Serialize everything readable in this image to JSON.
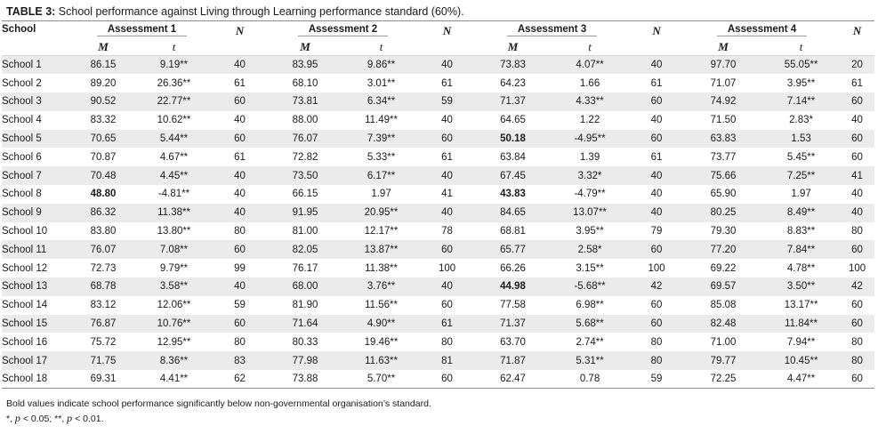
{
  "caption": {
    "label": "TABLE 3:",
    "text": " School performance against Living through Learning performance standard (60%)."
  },
  "header": {
    "school": "School",
    "assessments": [
      "Assessment 1",
      "Assessment 2",
      "Assessment 3",
      "Assessment 4"
    ],
    "m": "M",
    "t": "t",
    "n": "N"
  },
  "rows": [
    {
      "school": "School 1",
      "cells": [
        [
          "86.15",
          "9.19**",
          "40"
        ],
        [
          "83.95",
          "9.86**",
          "40"
        ],
        [
          "73.83",
          "4.07**",
          "40"
        ],
        [
          "97.70",
          "55.05**",
          "20"
        ]
      ],
      "bold": [
        false,
        false,
        false,
        false
      ]
    },
    {
      "school": "School 2",
      "cells": [
        [
          "89.20",
          "26.36**",
          "61"
        ],
        [
          "68.10",
          "3.01**",
          "61"
        ],
        [
          "64.23",
          "1.66",
          "61"
        ],
        [
          "71.07",
          "3.95**",
          "61"
        ]
      ],
      "bold": [
        false,
        false,
        false,
        false
      ]
    },
    {
      "school": "School 3",
      "cells": [
        [
          "90.52",
          "22.77**",
          "60"
        ],
        [
          "73.81",
          "6.34**",
          "59"
        ],
        [
          "71.37",
          "4.33**",
          "60"
        ],
        [
          "74.92",
          "7.14**",
          "60"
        ]
      ],
      "bold": [
        false,
        false,
        false,
        false
      ]
    },
    {
      "school": "School 4",
      "cells": [
        [
          "83.32",
          "10.62**",
          "40"
        ],
        [
          "88.00",
          "11.49**",
          "40"
        ],
        [
          "64.65",
          "1.22",
          "40"
        ],
        [
          "71.50",
          "2.83*",
          "40"
        ]
      ],
      "bold": [
        false,
        false,
        false,
        false
      ]
    },
    {
      "school": "School 5",
      "cells": [
        [
          "70.65",
          "5.44**",
          "60"
        ],
        [
          "76.07",
          "7.39**",
          "60"
        ],
        [
          "50.18",
          "-4.95**",
          "60"
        ],
        [
          "63.83",
          "1.53",
          "60"
        ]
      ],
      "bold": [
        false,
        false,
        true,
        false
      ]
    },
    {
      "school": "School 6",
      "cells": [
        [
          "70.87",
          "4.67**",
          "61"
        ],
        [
          "72.82",
          "5.33**",
          "61"
        ],
        [
          "63.84",
          "1.39",
          "61"
        ],
        [
          "73.77",
          "5.45**",
          "60"
        ]
      ],
      "bold": [
        false,
        false,
        false,
        false
      ]
    },
    {
      "school": "School 7",
      "cells": [
        [
          "70.48",
          "4.45**",
          "40"
        ],
        [
          "73.50",
          "6.17**",
          "40"
        ],
        [
          "67.45",
          "3.32*",
          "40"
        ],
        [
          "75.66",
          "7.25**",
          "41"
        ]
      ],
      "bold": [
        false,
        false,
        false,
        false
      ]
    },
    {
      "school": "School 8",
      "cells": [
        [
          "48.80",
          "-4.81**",
          "40"
        ],
        [
          "66.15",
          "1.97",
          "41"
        ],
        [
          "43.83",
          "-4.79**",
          "40"
        ],
        [
          "65.90",
          "1.97",
          "40"
        ]
      ],
      "bold": [
        true,
        false,
        true,
        false
      ]
    },
    {
      "school": "School 9",
      "cells": [
        [
          "86.32",
          "11.38**",
          "40"
        ],
        [
          "91.95",
          "20.95**",
          "40"
        ],
        [
          "84.65",
          "13.07**",
          "40"
        ],
        [
          "80.25",
          "8.49**",
          "40"
        ]
      ],
      "bold": [
        false,
        false,
        false,
        false
      ]
    },
    {
      "school": "School 10",
      "cells": [
        [
          "83.80",
          "13.80**",
          "80"
        ],
        [
          "81.00",
          "12.17**",
          "78"
        ],
        [
          "68.81",
          "3.95**",
          "79"
        ],
        [
          "79.30",
          "8.83**",
          "80"
        ]
      ],
      "bold": [
        false,
        false,
        false,
        false
      ]
    },
    {
      "school": "School 11",
      "cells": [
        [
          "76.07",
          "7.08**",
          "60"
        ],
        [
          "82.05",
          "13.87**",
          "60"
        ],
        [
          "65.77",
          "2.58*",
          "60"
        ],
        [
          "77.20",
          "7.84**",
          "60"
        ]
      ],
      "bold": [
        false,
        false,
        false,
        false
      ]
    },
    {
      "school": "School 12",
      "cells": [
        [
          "72.73",
          "9.79**",
          "99"
        ],
        [
          "76.17",
          "11.38**",
          "100"
        ],
        [
          "66.26",
          "3.15**",
          "100"
        ],
        [
          "69.22",
          "4.78**",
          "100"
        ]
      ],
      "bold": [
        false,
        false,
        false,
        false
      ]
    },
    {
      "school": "School 13",
      "cells": [
        [
          "68.78",
          "3.58**",
          "40"
        ],
        [
          "68.00",
          "3.76**",
          "40"
        ],
        [
          "44.98",
          "-5.68**",
          "42"
        ],
        [
          "69.57",
          "3.50**",
          "42"
        ]
      ],
      "bold": [
        false,
        false,
        true,
        false
      ]
    },
    {
      "school": "School 14",
      "cells": [
        [
          "83.12",
          "12.06**",
          "59"
        ],
        [
          "81.90",
          "11.56**",
          "60"
        ],
        [
          "77.58",
          "6.98**",
          "60"
        ],
        [
          "85.08",
          "13.17**",
          "60"
        ]
      ],
      "bold": [
        false,
        false,
        false,
        false
      ]
    },
    {
      "school": "School 15",
      "cells": [
        [
          "76.87",
          "10.76**",
          "60"
        ],
        [
          "71.64",
          "4.90**",
          "61"
        ],
        [
          "71.37",
          "5.68**",
          "60"
        ],
        [
          "82.48",
          "11.84**",
          "60"
        ]
      ],
      "bold": [
        false,
        false,
        false,
        false
      ]
    },
    {
      "school": "School 16",
      "cells": [
        [
          "75.72",
          "12.95**",
          "80"
        ],
        [
          "80.33",
          "19.46**",
          "80"
        ],
        [
          "63.70",
          "2.74**",
          "80"
        ],
        [
          "71.00",
          "7.94**",
          "80"
        ]
      ],
      "bold": [
        false,
        false,
        false,
        false
      ]
    },
    {
      "school": "School 17",
      "cells": [
        [
          "71.75",
          "8.36**",
          "83"
        ],
        [
          "77.98",
          "11.63**",
          "81"
        ],
        [
          "71.87",
          "5.31**",
          "80"
        ],
        [
          "79.77",
          "10.45**",
          "80"
        ]
      ],
      "bold": [
        false,
        false,
        false,
        false
      ]
    },
    {
      "school": "School 18",
      "cells": [
        [
          "69.31",
          "4.41**",
          "62"
        ],
        [
          "73.88",
          "5.70**",
          "60"
        ],
        [
          "62.47",
          "0.78",
          "59"
        ],
        [
          "72.25",
          "4.47**",
          "60"
        ]
      ],
      "bold": [
        false,
        false,
        false,
        false
      ]
    }
  ],
  "footnote": {
    "line1": "Bold values indicate school performance significantly below non-governmental organisation’s standard.",
    "line2_a": "*, ",
    "p": "p",
    "line2_b": " < 0.05; **, ",
    "line2_c": " < 0.01."
  }
}
